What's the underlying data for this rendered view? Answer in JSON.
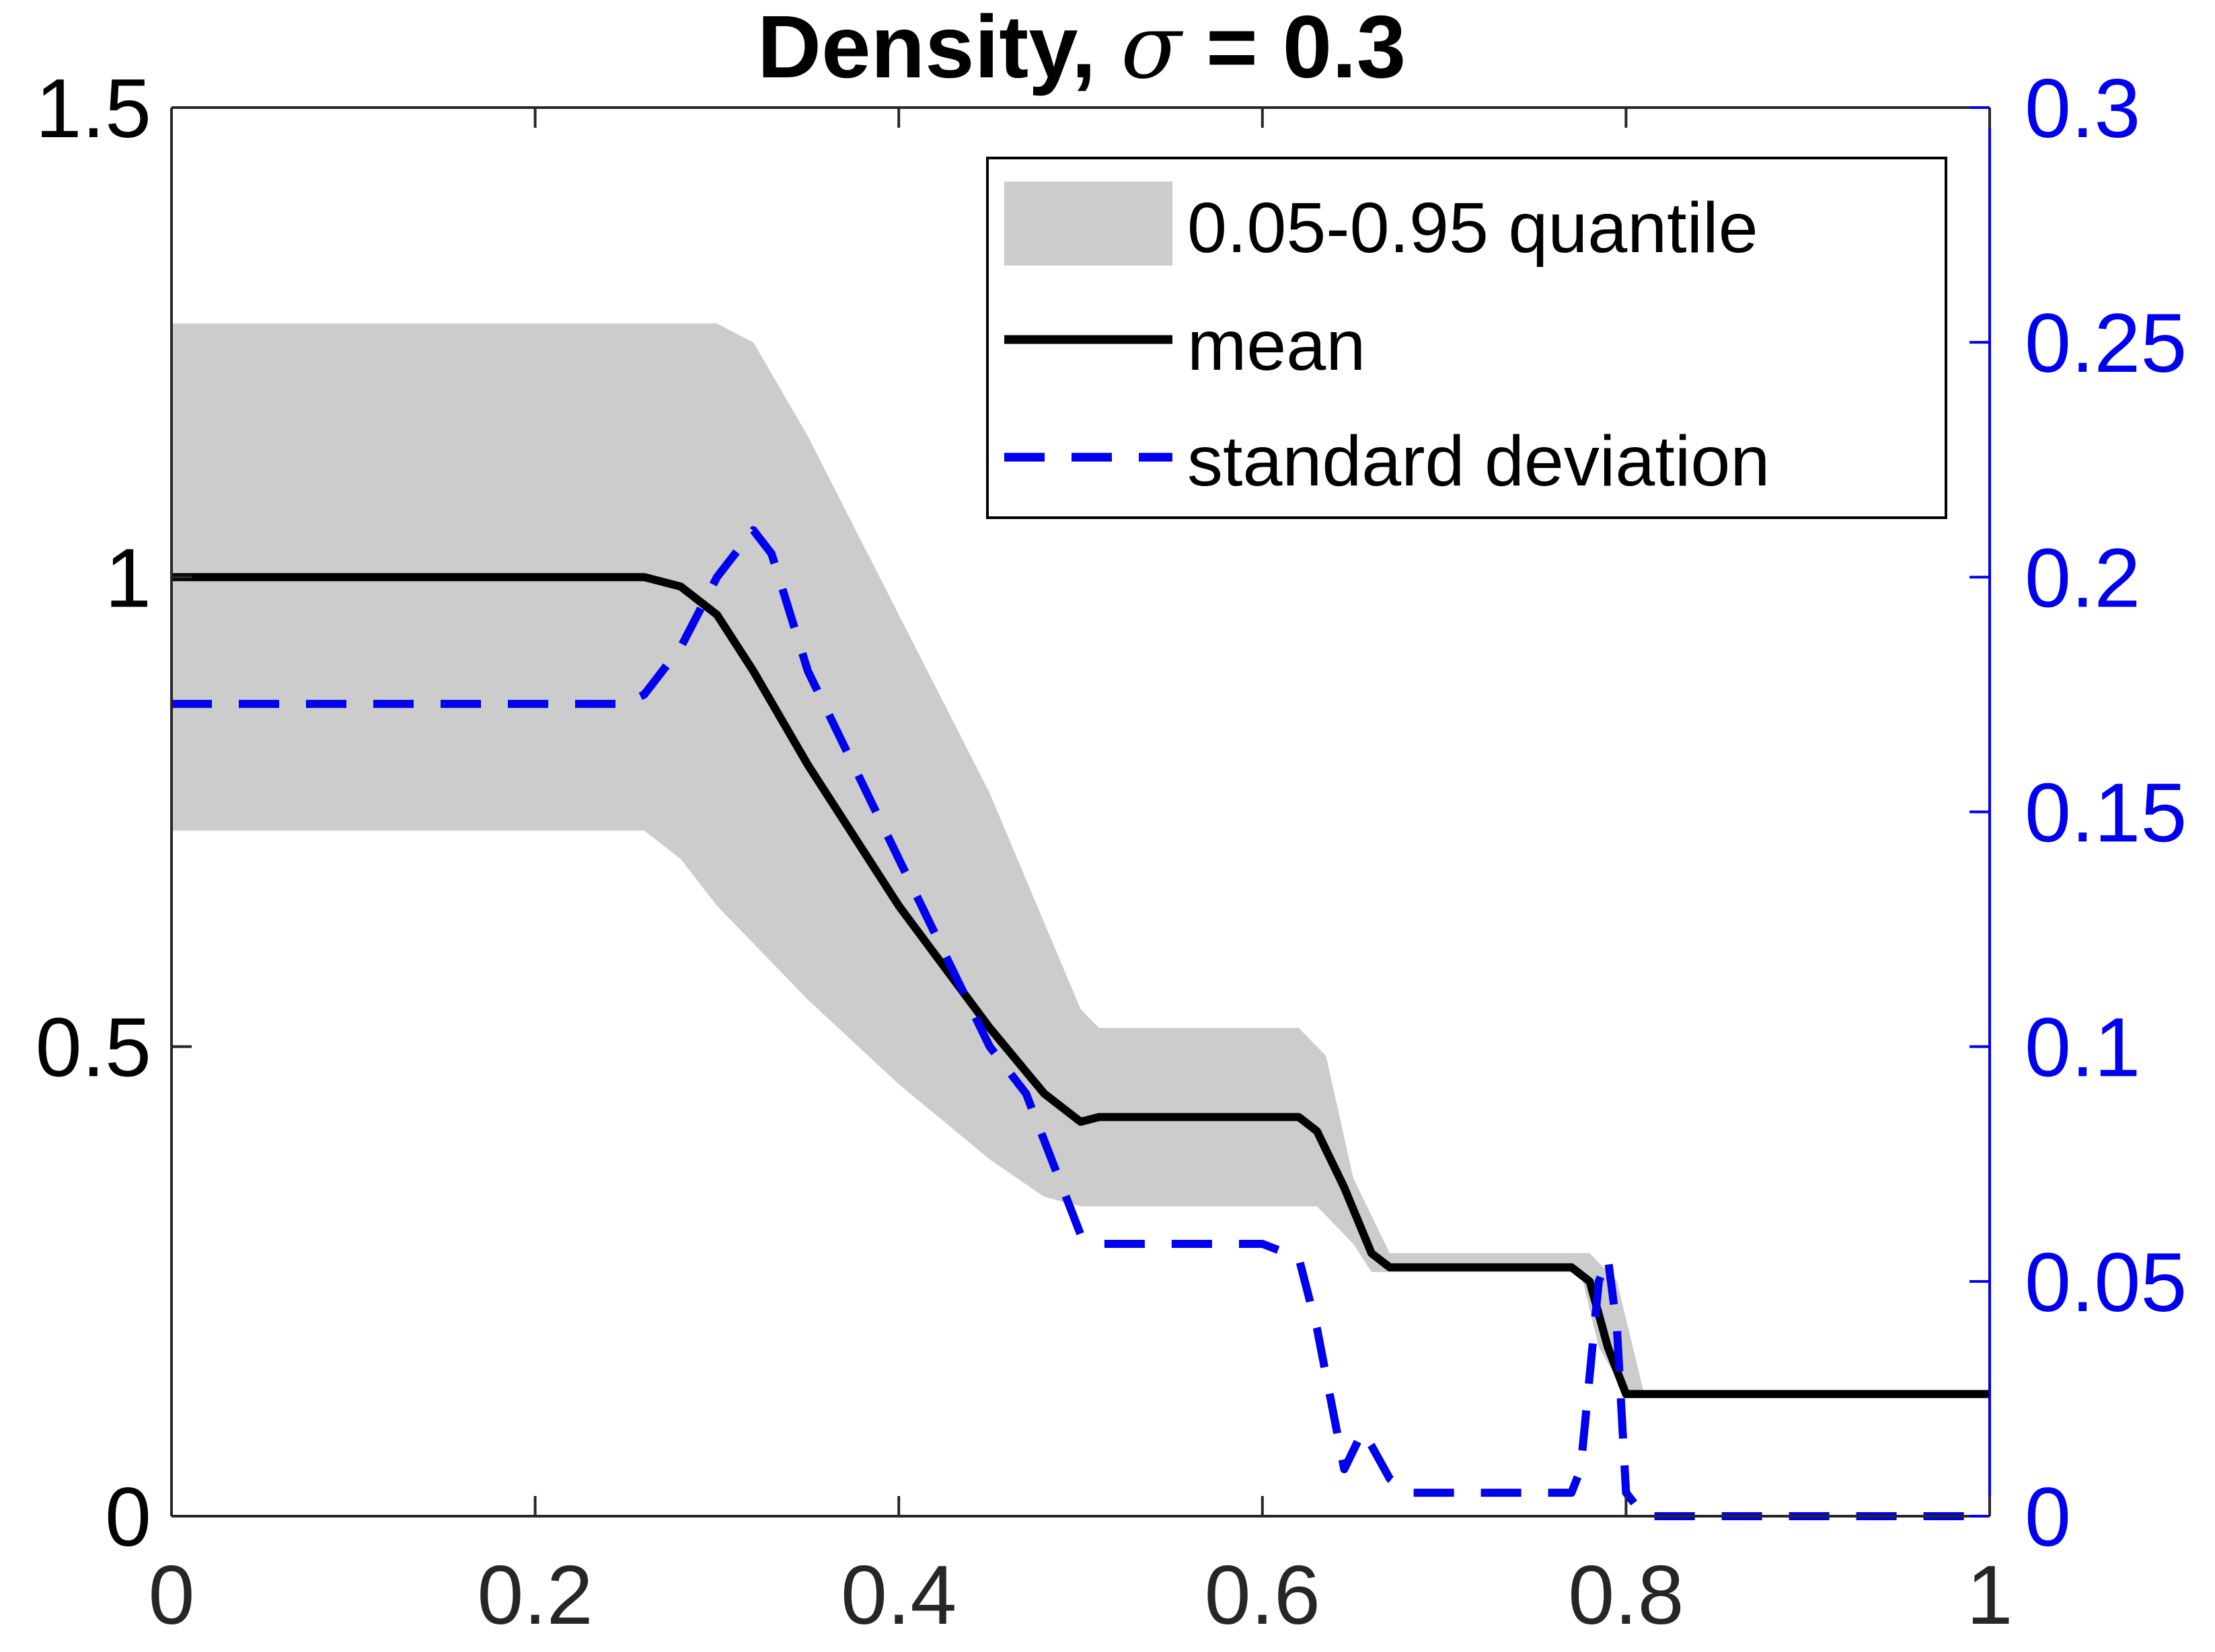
{
  "chart_data": {
    "type": "line",
    "title": "Density,",
    "title_symbol": "σ",
    "title_suffix": "= 0.3",
    "xlim": [
      0,
      1
    ],
    "ylim_left": [
      0,
      1.5
    ],
    "ylim_right": [
      0,
      0.3
    ],
    "x_ticks": [
      "0",
      "0.2",
      "0.4",
      "0.6",
      "0.8",
      "1"
    ],
    "y_ticks_left": [
      "0",
      "0.5",
      "1",
      "1.5"
    ],
    "y_ticks_right": [
      "0",
      "0.05",
      "0.1",
      "0.15",
      "0.2",
      "0.25",
      "0.3"
    ],
    "colors": {
      "band": "#cccccc",
      "mean": "#000000",
      "std": "#0000ee",
      "right_axis": "#0000ee"
    },
    "legend": {
      "position": "top-right",
      "entries": [
        "0.05-0.95 quantile",
        "mean",
        "standard deviation"
      ]
    },
    "band_upper": [
      [
        0,
        1.27
      ],
      [
        0.3,
        1.27
      ],
      [
        0.32,
        1.25
      ],
      [
        0.35,
        1.15
      ],
      [
        0.4,
        0.96
      ],
      [
        0.45,
        0.77
      ],
      [
        0.5,
        0.54
      ],
      [
        0.51,
        0.52
      ],
      [
        0.62,
        0.52
      ],
      [
        0.635,
        0.49
      ],
      [
        0.65,
        0.36
      ],
      [
        0.67,
        0.28
      ],
      [
        0.78,
        0.28
      ],
      [
        0.795,
        0.25
      ],
      [
        0.81,
        0.13
      ],
      [
        1,
        0.13
      ]
    ],
    "band_lower": [
      [
        0,
        0.73
      ],
      [
        0.26,
        0.73
      ],
      [
        0.28,
        0.7
      ],
      [
        0.3,
        0.65
      ],
      [
        0.35,
        0.55
      ],
      [
        0.4,
        0.46
      ],
      [
        0.45,
        0.38
      ],
      [
        0.48,
        0.34
      ],
      [
        0.5,
        0.33
      ],
      [
        0.63,
        0.33
      ],
      [
        0.65,
        0.29
      ],
      [
        0.66,
        0.26
      ],
      [
        0.775,
        0.26
      ],
      [
        0.785,
        0.18
      ],
      [
        0.8,
        0.13
      ],
      [
        1,
        0.13
      ]
    ],
    "mean": [
      [
        0,
        1.0
      ],
      [
        0.26,
        1.0
      ],
      [
        0.28,
        0.99
      ],
      [
        0.3,
        0.96
      ],
      [
        0.32,
        0.9
      ],
      [
        0.35,
        0.8
      ],
      [
        0.4,
        0.65
      ],
      [
        0.45,
        0.52
      ],
      [
        0.48,
        0.45
      ],
      [
        0.5,
        0.42
      ],
      [
        0.51,
        0.425
      ],
      [
        0.62,
        0.425
      ],
      [
        0.63,
        0.41
      ],
      [
        0.645,
        0.35
      ],
      [
        0.66,
        0.28
      ],
      [
        0.67,
        0.265
      ],
      [
        0.77,
        0.265
      ],
      [
        0.78,
        0.25
      ],
      [
        0.79,
        0.18
      ],
      [
        0.8,
        0.13
      ],
      [
        0.81,
        0.13
      ],
      [
        1,
        0.13
      ]
    ],
    "std": [
      [
        0,
        0.173
      ],
      [
        0.25,
        0.173
      ],
      [
        0.26,
        0.175
      ],
      [
        0.28,
        0.185
      ],
      [
        0.3,
        0.2
      ],
      [
        0.32,
        0.21
      ],
      [
        0.33,
        0.205
      ],
      [
        0.35,
        0.18
      ],
      [
        0.4,
        0.14
      ],
      [
        0.45,
        0.1
      ],
      [
        0.47,
        0.09
      ],
      [
        0.49,
        0.07
      ],
      [
        0.5,
        0.06
      ],
      [
        0.51,
        0.058
      ],
      [
        0.6,
        0.058
      ],
      [
        0.62,
        0.055
      ],
      [
        0.63,
        0.04
      ],
      [
        0.64,
        0.02
      ],
      [
        0.645,
        0.01
      ],
      [
        0.655,
        0.018
      ],
      [
        0.66,
        0.015
      ],
      [
        0.67,
        0.008
      ],
      [
        0.68,
        0.005
      ],
      [
        0.7,
        0.005
      ],
      [
        0.77,
        0.005
      ],
      [
        0.775,
        0.01
      ],
      [
        0.78,
        0.03
      ],
      [
        0.785,
        0.05
      ],
      [
        0.79,
        0.055
      ],
      [
        0.795,
        0.04
      ],
      [
        0.8,
        0.005
      ],
      [
        0.81,
        0.0
      ],
      [
        1,
        0.0
      ]
    ]
  }
}
